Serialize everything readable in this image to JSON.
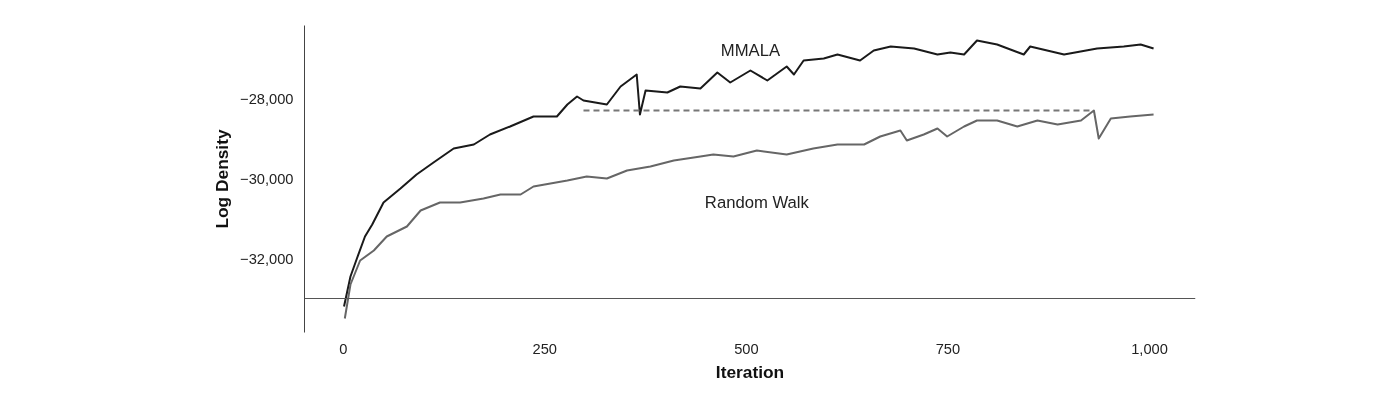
{
  "chart_data": {
    "type": "line",
    "xlabel": "Iteration",
    "ylabel": "Log Density",
    "xlim": [
      -48,
      1057
    ],
    "ylim": [
      -33850,
      -26175
    ],
    "xticks": [
      0,
      250,
      500,
      750,
      {
        "value": 1000,
        "label": "1,000"
      }
    ],
    "yticks": [
      {
        "value": -32000,
        "label": "−32,000"
      },
      {
        "value": -30000,
        "label": "−30,000"
      },
      {
        "value": -28000,
        "label": "−28,000"
      }
    ],
    "grid": false,
    "marker": "none",
    "tick_labels": "xy",
    "ref_lines": [
      {
        "axis": "y",
        "value": -33000,
        "color": "#555555"
      }
    ],
    "series": [
      {
        "name": "MMALA",
        "color": "#1a1a1a",
        "x": [
          1,
          9,
          17,
          27,
          36,
          50,
          71,
          91,
          112,
          137,
          162,
          182,
          207,
          236,
          265,
          278,
          290,
          298,
          327,
          344,
          364,
          368,
          375,
          402,
          418,
          443,
          464,
          480,
          505,
          526,
          550,
          559,
          571,
          596,
          613,
          641,
          658,
          679,
          708,
          737,
          753,
          770,
          786,
          811,
          844,
          852,
          894,
          935,
          968,
          989,
          1005
        ],
        "values": [
          -33200,
          -32450,
          -32000,
          -31450,
          -31150,
          -30600,
          -30250,
          -29900,
          -29600,
          -29250,
          -29150,
          -28900,
          -28700,
          -28450,
          -28450,
          -28150,
          -27950,
          -28050,
          -28150,
          -27700,
          -27400,
          -28400,
          -27800,
          -27850,
          -27700,
          -27750,
          -27350,
          -27600,
          -27300,
          -27550,
          -27200,
          -27400,
          -27050,
          -27000,
          -26900,
          -27050,
          -26800,
          -26700,
          -26750,
          -26900,
          -26850,
          -26900,
          -26550,
          -26650,
          -26900,
          -26700,
          -26900,
          -26750,
          -26700,
          -26650,
          -26750
        ]
      },
      {
        "name": "Random Walk",
        "color": "#666666",
        "x": [
          2,
          9,
          21,
          38,
          54,
          79,
          96,
          120,
          145,
          174,
          195,
          220,
          236,
          278,
          302,
          327,
          352,
          381,
          410,
          443,
          459,
          484,
          513,
          550,
          583,
          613,
          646,
          666,
          691,
          699,
          720,
          737,
          749,
          770,
          786,
          811,
          836,
          861,
          886,
          915,
          931,
          937,
          952,
          976,
          1005
        ],
        "values": [
          -33500,
          -32650,
          -32050,
          -31800,
          -31450,
          -31200,
          -30800,
          -30600,
          -30600,
          -30500,
          -30400,
          -30400,
          -30200,
          -30050,
          -29950,
          -30000,
          -29800,
          -29700,
          -29550,
          -29450,
          -29400,
          -29450,
          -29300,
          -29400,
          -29250,
          -29150,
          -29150,
          -28950,
          -28800,
          -29050,
          -28900,
          -28750,
          -28950,
          -28700,
          -28550,
          -28550,
          -28700,
          -28550,
          -28650,
          -28550,
          -28300,
          -29000,
          -28500,
          -28450,
          -28400
        ]
      },
      {
        "color": "#777777",
        "line_style": "dashed",
        "x": [
          298,
          930
        ],
        "values": [
          -28300,
          -28300
        ]
      }
    ]
  }
}
